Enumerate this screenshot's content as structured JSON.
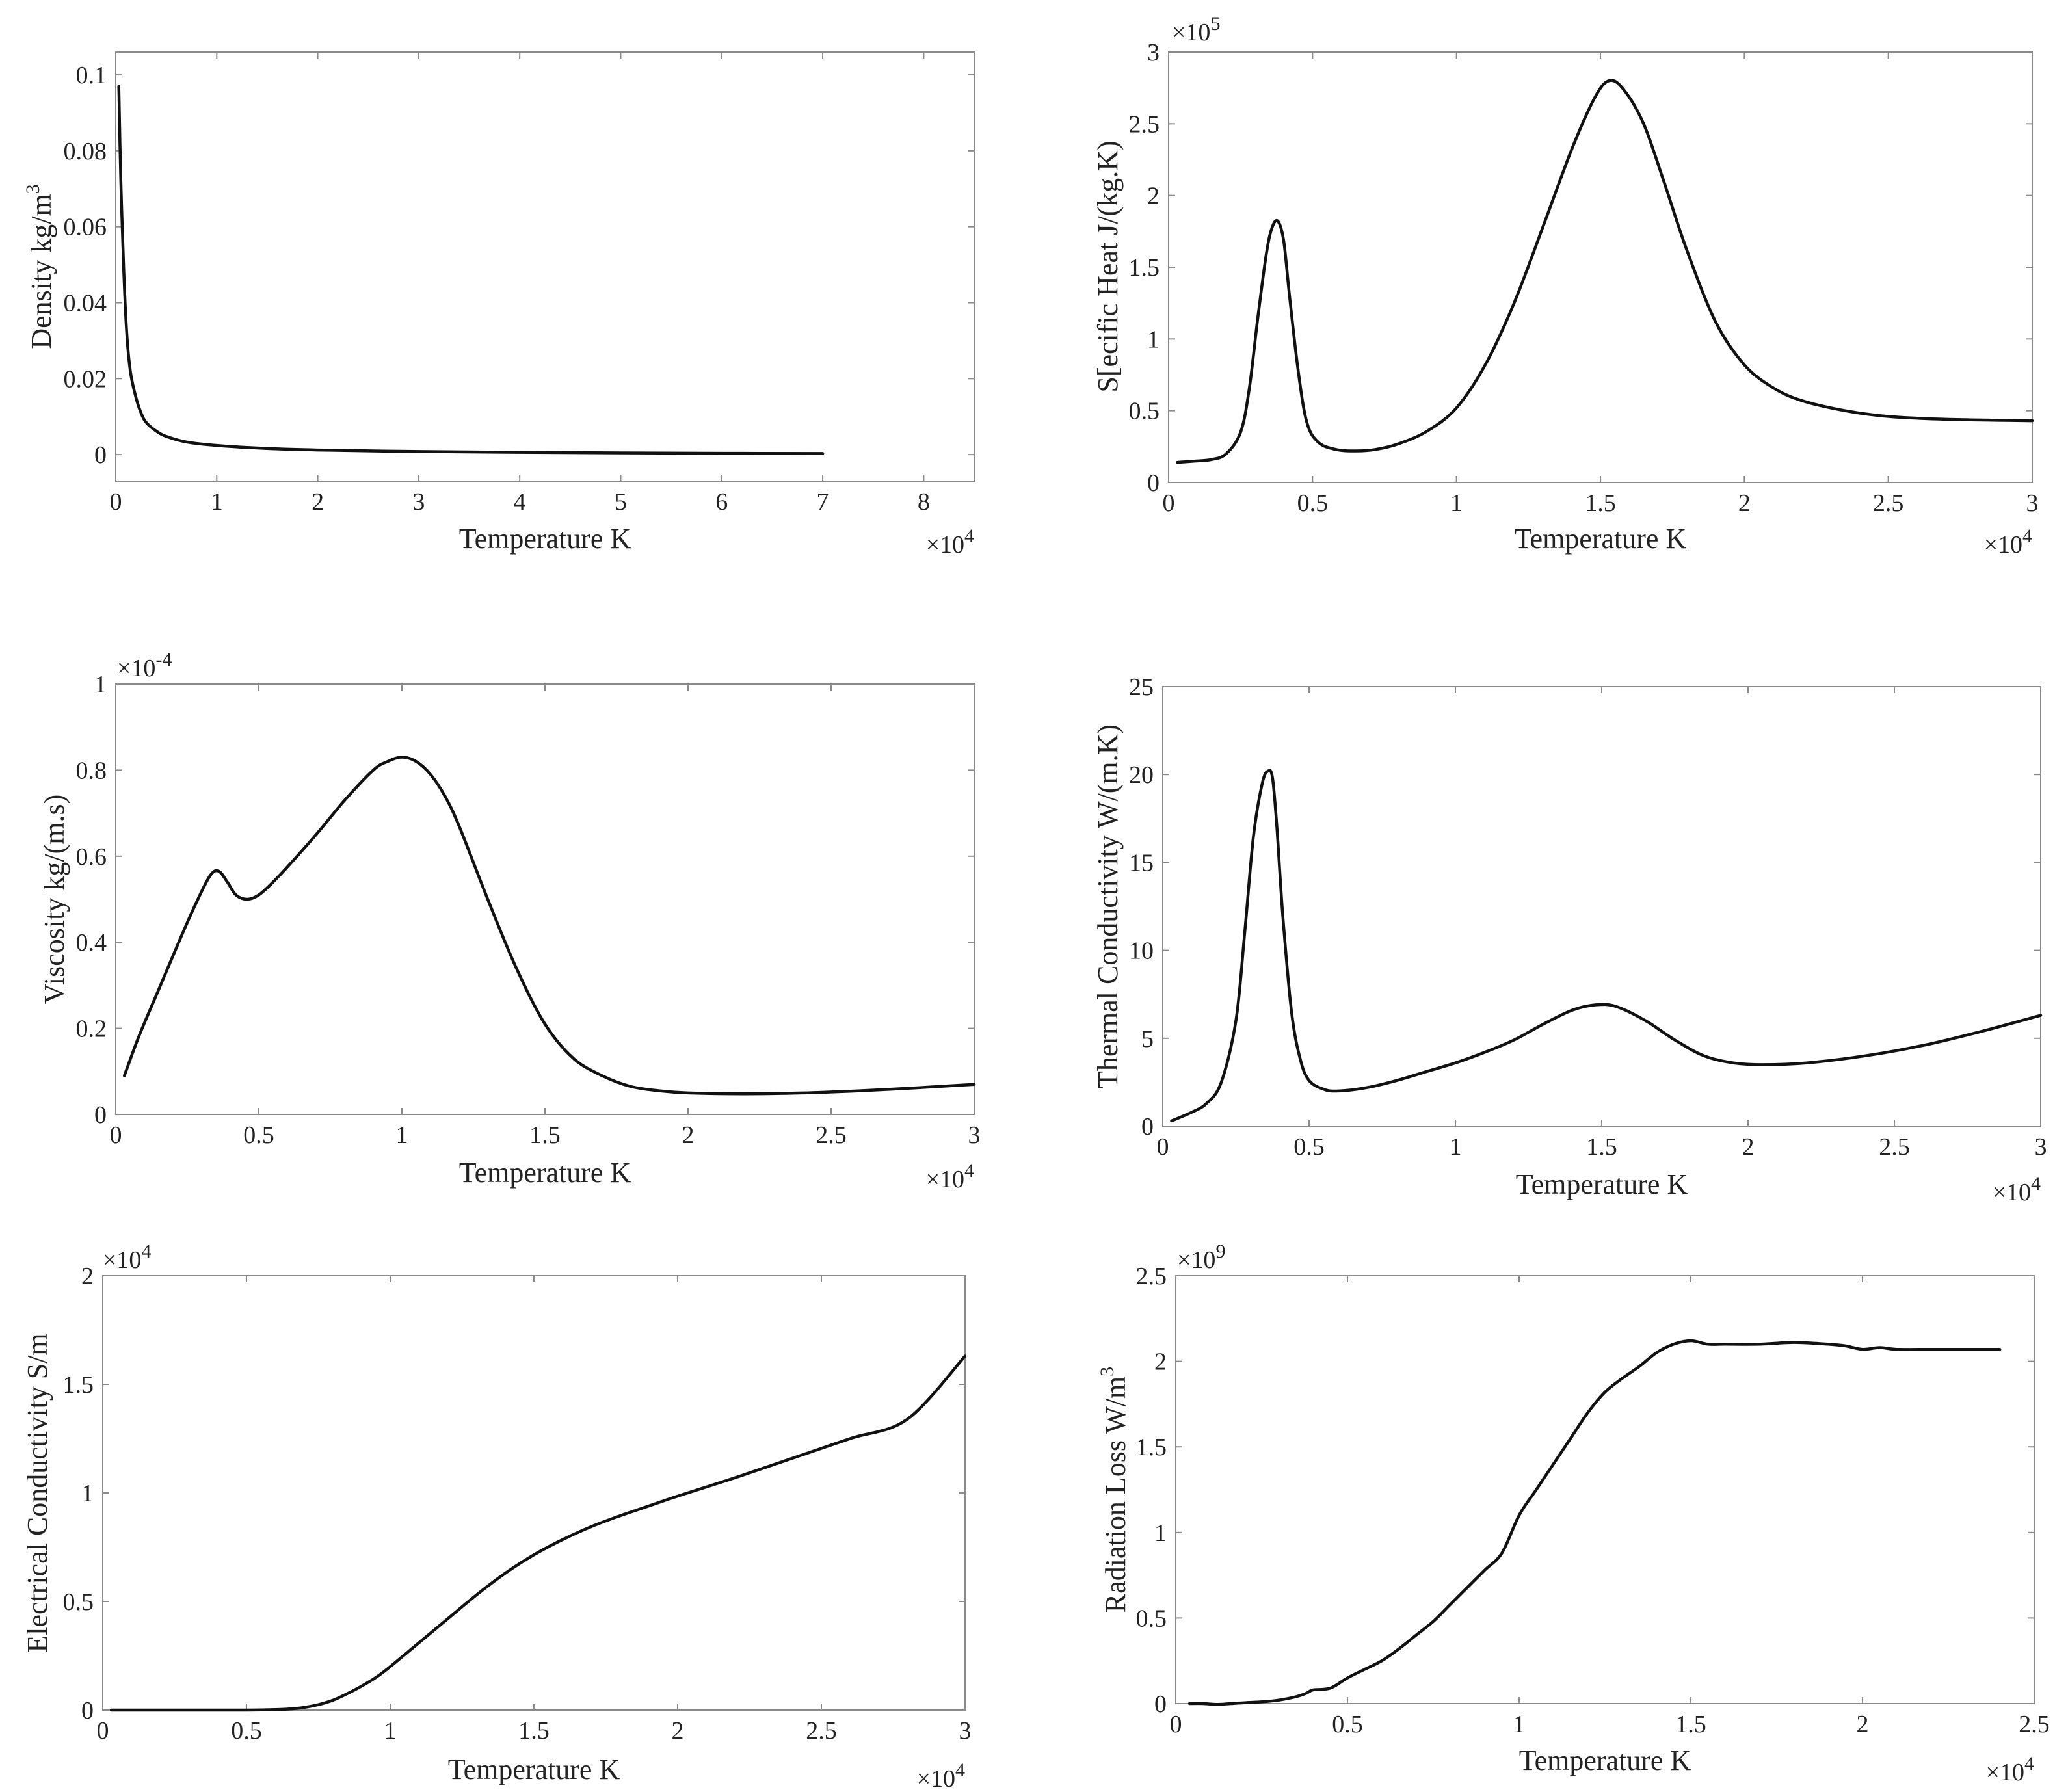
{
  "chart_data": [
    {
      "type": "line",
      "xlabel": "Temperature K",
      "ylabel": "Density kg/m",
      "ylabel_sup": "3",
      "x_multiplier": "×10",
      "x_multiplier_exp": "4",
      "xlim": [
        0,
        8.5
      ],
      "ylim": [
        -0.007,
        0.106
      ],
      "xticks": [
        0,
        1,
        2,
        3,
        4,
        5,
        6,
        7,
        8
      ],
      "xtick_labels": [
        "0",
        "1",
        "2",
        "3",
        "4",
        "5",
        "6",
        "7",
        "8"
      ],
      "yticks": [
        0,
        0.02,
        0.04,
        0.06,
        0.08,
        0.1
      ],
      "ytick_labels": [
        "0",
        "0.02",
        "0.04",
        "0.06",
        "0.08",
        "0.1"
      ],
      "series": [
        {
          "name": "Density",
          "x": [
            0.03,
            0.05,
            0.08,
            0.1,
            0.12,
            0.15,
            0.2,
            0.25,
            0.3,
            0.4,
            0.5,
            0.7,
            1.0,
            1.5,
            2,
            3,
            4,
            5,
            6,
            7
          ],
          "y": [
            0.097,
            0.072,
            0.048,
            0.036,
            0.028,
            0.021,
            0.015,
            0.011,
            0.0085,
            0.0062,
            0.0048,
            0.0033,
            0.0024,
            0.0016,
            0.0012,
            0.0008,
            0.0006,
            0.00045,
            0.00035,
            0.0003
          ]
        }
      ]
    },
    {
      "type": "line",
      "xlabel": "Temperature K",
      "ylabel": "S[ecific Heat J/(kg.K)",
      "ylabel_sup": "",
      "x_multiplier": "×10",
      "x_multiplier_exp": "4",
      "y_multiplier": "×10",
      "y_multiplier_exp": "5",
      "xlim": [
        0,
        3
      ],
      "ylim": [
        0,
        3
      ],
      "xticks": [
        0,
        0.5,
        1,
        1.5,
        2,
        2.5,
        3
      ],
      "xtick_labels": [
        "0",
        "0.5",
        "1",
        "1.5",
        "2",
        "2.5",
        "3"
      ],
      "yticks": [
        0,
        0.5,
        1,
        1.5,
        2,
        2.5,
        3
      ],
      "ytick_labels": [
        "0",
        "0.5",
        "1",
        "1.5",
        "2",
        "2.5",
        "3"
      ],
      "series": [
        {
          "name": "Specific Heat",
          "x": [
            0.03,
            0.1,
            0.15,
            0.2,
            0.25,
            0.28,
            0.31,
            0.34,
            0.36,
            0.38,
            0.4,
            0.42,
            0.45,
            0.48,
            0.52,
            0.58,
            0.65,
            0.72,
            0.8,
            0.9,
            1.0,
            1.1,
            1.2,
            1.3,
            1.4,
            1.48,
            1.53,
            1.58,
            1.65,
            1.72,
            1.8,
            1.9,
            2.0,
            2.1,
            2.2,
            2.35,
            2.5,
            2.7,
            3.0
          ],
          "y": [
            0.14,
            0.15,
            0.16,
            0.2,
            0.35,
            0.65,
            1.15,
            1.6,
            1.78,
            1.82,
            1.68,
            1.3,
            0.78,
            0.42,
            0.28,
            0.23,
            0.22,
            0.23,
            0.27,
            0.36,
            0.52,
            0.82,
            1.25,
            1.78,
            2.32,
            2.68,
            2.8,
            2.74,
            2.5,
            2.1,
            1.62,
            1.12,
            0.82,
            0.66,
            0.57,
            0.5,
            0.46,
            0.44,
            0.43
          ]
        }
      ]
    },
    {
      "type": "line",
      "xlabel": "Temperature K",
      "ylabel": "Viscosity kg/(m.s)",
      "ylabel_sup": "",
      "x_multiplier": "×10",
      "x_multiplier_exp": "4",
      "y_multiplier": "×10",
      "y_multiplier_exp": "-4",
      "xlim": [
        0,
        3
      ],
      "ylim": [
        0,
        1
      ],
      "xticks": [
        0,
        0.5,
        1,
        1.5,
        2,
        2.5,
        3
      ],
      "xtick_labels": [
        "0",
        "0.5",
        "1",
        "1.5",
        "2",
        "2.5",
        "3"
      ],
      "yticks": [
        0,
        0.2,
        0.4,
        0.6,
        0.8,
        1
      ],
      "ytick_labels": [
        "0",
        "0.2",
        "0.4",
        "0.6",
        "0.8",
        "1"
      ],
      "series": [
        {
          "name": "Viscosity",
          "x": [
            0.03,
            0.08,
            0.15,
            0.22,
            0.28,
            0.33,
            0.36,
            0.39,
            0.42,
            0.46,
            0.5,
            0.55,
            0.6,
            0.7,
            0.8,
            0.9,
            0.95,
            1.0,
            1.05,
            1.1,
            1.15,
            1.2,
            1.3,
            1.4,
            1.5,
            1.6,
            1.7,
            1.8,
            1.9,
            2.0,
            2.2,
            2.4,
            2.6,
            2.8,
            3.0
          ],
          "y": [
            0.09,
            0.18,
            0.29,
            0.4,
            0.49,
            0.555,
            0.565,
            0.54,
            0.51,
            0.5,
            0.51,
            0.54,
            0.575,
            0.65,
            0.73,
            0.8,
            0.82,
            0.83,
            0.82,
            0.79,
            0.74,
            0.67,
            0.5,
            0.34,
            0.21,
            0.13,
            0.09,
            0.065,
            0.055,
            0.05,
            0.048,
            0.05,
            0.055,
            0.062,
            0.07
          ]
        }
      ]
    },
    {
      "type": "line",
      "xlabel": "Temperature K",
      "ylabel": "Thermal Conductivity W/(m.K)",
      "ylabel_sup": "",
      "x_multiplier": "×10",
      "x_multiplier_exp": "4",
      "xlim": [
        0,
        3
      ],
      "ylim": [
        0,
        25
      ],
      "xticks": [
        0,
        0.5,
        1,
        1.5,
        2,
        2.5,
        3
      ],
      "xtick_labels": [
        "0",
        "0.5",
        "1",
        "1.5",
        "2",
        "2.5",
        "3"
      ],
      "yticks": [
        0,
        5,
        10,
        15,
        20,
        25
      ],
      "ytick_labels": [
        "0",
        "5",
        "10",
        "15",
        "20",
        "25"
      ],
      "series": [
        {
          "name": "Thermal Conductivity",
          "x": [
            0.03,
            0.1,
            0.15,
            0.2,
            0.25,
            0.28,
            0.31,
            0.34,
            0.36,
            0.375,
            0.39,
            0.41,
            0.44,
            0.47,
            0.5,
            0.55,
            0.6,
            0.7,
            0.8,
            0.9,
            1.0,
            1.1,
            1.2,
            1.3,
            1.4,
            1.48,
            1.55,
            1.65,
            1.75,
            1.85,
            1.95,
            2.05,
            2.2,
            2.4,
            2.6,
            2.8,
            3.0
          ],
          "y": [
            0.3,
            0.8,
            1.3,
            2.5,
            6,
            11,
            16.5,
            19.5,
            20.2,
            19.8,
            17,
            12,
            6.5,
            3.8,
            2.6,
            2.1,
            2.0,
            2.2,
            2.6,
            3.1,
            3.6,
            4.2,
            4.9,
            5.8,
            6.6,
            6.9,
            6.8,
            6.0,
            4.9,
            4.0,
            3.6,
            3.5,
            3.6,
            4.0,
            4.6,
            5.4,
            6.3
          ]
        }
      ]
    },
    {
      "type": "line",
      "xlabel": "Temperature K",
      "ylabel": "Electrical Conductivity S/m",
      "ylabel_sup": "",
      "x_multiplier": "×10",
      "x_multiplier_exp": "4",
      "y_multiplier": "×10",
      "y_multiplier_exp": "4",
      "xlim": [
        0,
        3
      ],
      "ylim": [
        0,
        2
      ],
      "xticks": [
        0,
        0.5,
        1,
        1.5,
        2,
        2.5,
        3
      ],
      "xtick_labels": [
        "0",
        "0.5",
        "1",
        "1.5",
        "2",
        "2.5",
        "3"
      ],
      "yticks": [
        0,
        0.5,
        1,
        1.5,
        2
      ],
      "ytick_labels": [
        "0",
        "0.5",
        "1",
        "1.5",
        "2"
      ],
      "series": [
        {
          "name": "Electrical Conductivity",
          "x": [
            0.03,
            0.3,
            0.5,
            0.6,
            0.65,
            0.7,
            0.75,
            0.8,
            0.85,
            0.9,
            0.95,
            1.0,
            1.1,
            1.2,
            1.3,
            1.4,
            1.5,
            1.6,
            1.7,
            1.8,
            1.9,
            2.0,
            2.2,
            2.4,
            2.6,
            2.8,
            3.0
          ],
          "y": [
            0,
            0,
            0,
            0.002,
            0.005,
            0.012,
            0.025,
            0.045,
            0.075,
            0.11,
            0.15,
            0.2,
            0.31,
            0.42,
            0.53,
            0.63,
            0.715,
            0.785,
            0.845,
            0.895,
            0.94,
            0.985,
            1.07,
            1.16,
            1.25,
            1.34,
            1.63
          ]
        }
      ]
    },
    {
      "type": "line",
      "xlabel": "Temperature K",
      "ylabel": "Radiation Loss W/m",
      "ylabel_sup": "3",
      "x_multiplier": "×10",
      "x_multiplier_exp": "4",
      "y_multiplier": "×10",
      "y_multiplier_exp": "9",
      "xlim": [
        0,
        2.5
      ],
      "ylim": [
        0,
        2.5
      ],
      "xticks": [
        0,
        0.5,
        1,
        1.5,
        2,
        2.5
      ],
      "xtick_labels": [
        "0",
        "0.5",
        "1",
        "1.5",
        "2",
        "2.5"
      ],
      "yticks": [
        0,
        0.5,
        1,
        1.5,
        2,
        2.5
      ],
      "ytick_labels": [
        "0",
        "0.5",
        "1",
        "1.5",
        "2",
        "2.5"
      ],
      "series": [
        {
          "name": "Radiation Loss",
          "x": [
            0.04,
            0.08,
            0.12,
            0.16,
            0.2,
            0.25,
            0.3,
            0.35,
            0.38,
            0.4,
            0.45,
            0.5,
            0.55,
            0.6,
            0.65,
            0.7,
            0.75,
            0.8,
            0.85,
            0.9,
            0.95,
            1.0,
            1.05,
            1.1,
            1.15,
            1.2,
            1.25,
            1.3,
            1.35,
            1.4,
            1.45,
            1.5,
            1.55,
            1.6,
            1.7,
            1.8,
            1.9,
            1.95,
            2.0,
            2.05,
            2.1,
            2.2,
            2.3,
            2.4
          ],
          "y": [
            0.0,
            0.0,
            -0.005,
            0.0,
            0.005,
            0.01,
            0.02,
            0.04,
            0.06,
            0.08,
            0.09,
            0.15,
            0.2,
            0.25,
            0.32,
            0.4,
            0.48,
            0.58,
            0.68,
            0.78,
            0.88,
            1.1,
            1.25,
            1.4,
            1.55,
            1.7,
            1.82,
            1.9,
            1.97,
            2.05,
            2.1,
            2.12,
            2.1,
            2.1,
            2.1,
            2.11,
            2.1,
            2.09,
            2.07,
            2.08,
            2.07,
            2.07,
            2.07,
            2.07
          ]
        }
      ]
    }
  ]
}
